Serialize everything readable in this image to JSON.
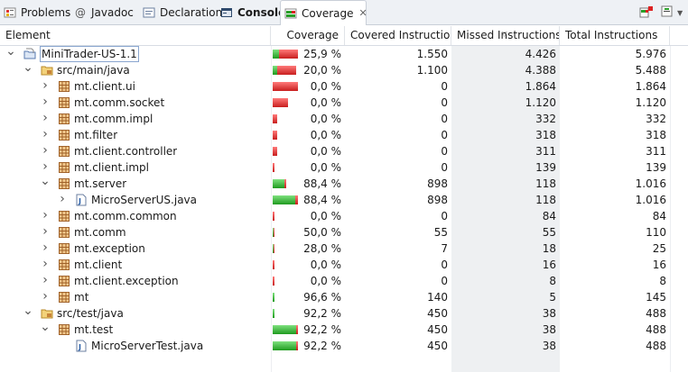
{
  "tabs": [
    {
      "label": "Problems",
      "icon": "problems-icon",
      "bold": false,
      "active": false
    },
    {
      "label": "Javadoc",
      "icon": "at-icon",
      "bold": false,
      "active": false
    },
    {
      "label": "Declaration",
      "icon": "declaration-icon",
      "bold": false,
      "active": false
    },
    {
      "label": "Console",
      "icon": "console-icon",
      "bold": true,
      "active": false
    },
    {
      "label": "Coverage",
      "icon": "coverage-icon",
      "bold": false,
      "active": true
    }
  ],
  "toolbar": {
    "icons": [
      "coverage-report-icon",
      "collapse-icon"
    ]
  },
  "columns": {
    "element": "Element",
    "coverage": "Coverage",
    "covered": "Covered Instructio...",
    "missed": "Missed Instructions",
    "total": "Total Instructions"
  },
  "colors": {
    "bar_green": "#1f9a1f",
    "bar_red": "#c81e1e",
    "selection": "#eef0f2"
  },
  "rows": [
    {
      "label": "MiniTrader-US-1.1",
      "type": "project",
      "level": 0,
      "expand": "down",
      "coverage": "25,9 %",
      "ratio": 0.259,
      "total_frac": 1.0,
      "covered": "1.550",
      "missed": "4.426",
      "total": "5.976"
    },
    {
      "label": "src/main/java",
      "type": "folder",
      "level": 1,
      "expand": "down",
      "coverage": "20,0 %",
      "ratio": 0.2,
      "total_frac": 0.918,
      "covered": "1.100",
      "missed": "4.388",
      "total": "5.488"
    },
    {
      "label": "mt.client.ui",
      "type": "package",
      "level": 2,
      "expand": "right",
      "coverage": "0,0 %",
      "ratio": 0.0,
      "total_frac": 1.0,
      "covered": "0",
      "missed": "1.864",
      "total": "1.864"
    },
    {
      "label": "mt.comm.socket",
      "type": "package",
      "level": 2,
      "expand": "right",
      "coverage": "0,0 %",
      "ratio": 0.0,
      "total_frac": 0.6,
      "covered": "0",
      "missed": "1.120",
      "total": "1.120"
    },
    {
      "label": "mt.comm.impl",
      "type": "package",
      "level": 2,
      "expand": "right",
      "coverage": "0,0 %",
      "ratio": 0.0,
      "total_frac": 0.18,
      "covered": "0",
      "missed": "332",
      "total": "332"
    },
    {
      "label": "mt.filter",
      "type": "package",
      "level": 2,
      "expand": "right",
      "coverage": "0,0 %",
      "ratio": 0.0,
      "total_frac": 0.17,
      "covered": "0",
      "missed": "318",
      "total": "318"
    },
    {
      "label": "mt.client.controller",
      "type": "package",
      "level": 2,
      "expand": "right",
      "coverage": "0,0 %",
      "ratio": 0.0,
      "total_frac": 0.17,
      "covered": "0",
      "missed": "311",
      "total": "311"
    },
    {
      "label": "mt.client.impl",
      "type": "package",
      "level": 2,
      "expand": "right",
      "coverage": "0,0 %",
      "ratio": 0.0,
      "total_frac": 0.075,
      "covered": "0",
      "missed": "139",
      "total": "139"
    },
    {
      "label": "mt.server",
      "type": "package",
      "level": 2,
      "expand": "down",
      "coverage": "88,4 %",
      "ratio": 0.884,
      "total_frac": 0.545,
      "covered": "898",
      "missed": "118",
      "total": "1.016"
    },
    {
      "label": "MicroServerUS.java",
      "type": "java",
      "level": 3,
      "expand": "right",
      "coverage": "88,4 %",
      "ratio": 0.884,
      "total_frac": 1.0,
      "covered": "898",
      "missed": "118",
      "total": "1.016"
    },
    {
      "label": "mt.comm.common",
      "type": "package",
      "level": 2,
      "expand": "right",
      "coverage": "0,0 %",
      "ratio": 0.0,
      "total_frac": 0.045,
      "covered": "0",
      "missed": "84",
      "total": "84"
    },
    {
      "label": "mt.comm",
      "type": "package",
      "level": 2,
      "expand": "right",
      "coverage": "50,0 %",
      "ratio": 0.5,
      "total_frac": 0.06,
      "covered": "55",
      "missed": "55",
      "total": "110"
    },
    {
      "label": "mt.exception",
      "type": "package",
      "level": 2,
      "expand": "right",
      "coverage": "28,0 %",
      "ratio": 0.28,
      "total_frac": 0.014,
      "covered": "7",
      "missed": "18",
      "total": "25"
    },
    {
      "label": "mt.client",
      "type": "package",
      "level": 2,
      "expand": "right",
      "coverage": "0,0 %",
      "ratio": 0.0,
      "total_frac": 0.009,
      "covered": "0",
      "missed": "16",
      "total": "16"
    },
    {
      "label": "mt.client.exception",
      "type": "package",
      "level": 2,
      "expand": "right",
      "coverage": "0,0 %",
      "ratio": 0.0,
      "total_frac": 0.004,
      "covered": "0",
      "missed": "8",
      "total": "8"
    },
    {
      "label": "mt",
      "type": "package",
      "level": 2,
      "expand": "right",
      "coverage": "96,6 %",
      "ratio": 0.966,
      "total_frac": 0.078,
      "covered": "140",
      "missed": "5",
      "total": "145"
    },
    {
      "label": "src/test/java",
      "type": "folder",
      "level": 1,
      "expand": "down",
      "coverage": "92,2 %",
      "ratio": 0.922,
      "total_frac": 0.082,
      "covered": "450",
      "missed": "38",
      "total": "488"
    },
    {
      "label": "mt.test",
      "type": "package",
      "level": 2,
      "expand": "down",
      "coverage": "92,2 %",
      "ratio": 0.922,
      "total_frac": 1.0,
      "covered": "450",
      "missed": "38",
      "total": "488"
    },
    {
      "label": "MicroServerTest.java",
      "type": "java",
      "level": 3,
      "expand": "none",
      "coverage": "92,2 %",
      "ratio": 0.922,
      "total_frac": 1.0,
      "covered": "450",
      "missed": "38",
      "total": "488"
    }
  ]
}
